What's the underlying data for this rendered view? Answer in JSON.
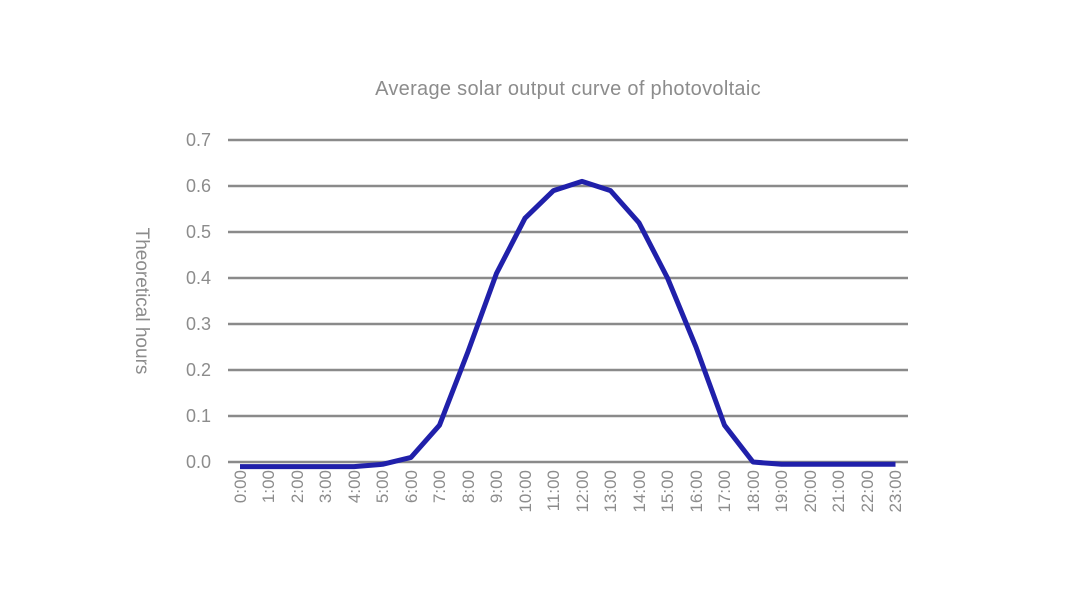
{
  "chart_data": {
    "type": "line",
    "title": "Average solar output curve of photovoltaic",
    "ylabel": "Theoretical hours",
    "xlabel": "",
    "categories": [
      "0:00",
      "1:00",
      "2:00",
      "3:00",
      "4:00",
      "5:00",
      "6:00",
      "7:00",
      "8:00",
      "9:00",
      "10:00",
      "11:00",
      "12:00",
      "13:00",
      "14:00",
      "15:00",
      "16:00",
      "17:00",
      "18:00",
      "19:00",
      "20:00",
      "21:00",
      "22:00",
      "23:00"
    ],
    "values": [
      -0.01,
      -0.01,
      -0.01,
      -0.01,
      -0.01,
      -0.005,
      0.01,
      0.08,
      0.24,
      0.41,
      0.53,
      0.59,
      0.61,
      0.59,
      0.52,
      0.4,
      0.25,
      0.08,
      0.0,
      -0.005,
      -0.005,
      -0.005,
      -0.005,
      -0.005
    ],
    "ylim": [
      0,
      0.7
    ],
    "yticks": [
      0.0,
      0.1,
      0.2,
      0.3,
      0.4,
      0.5,
      0.6,
      0.7
    ],
    "ytick_labels": [
      "0.0",
      "0.1",
      "0.2",
      "0.3",
      "0.4",
      "0.5",
      "0.6",
      "0.7"
    ],
    "grid": true,
    "legend": false,
    "colors": {
      "line": "#2020aa",
      "grid": "#8a8a8a",
      "text": "#8c8c8c",
      "background": "#ffffff"
    }
  }
}
